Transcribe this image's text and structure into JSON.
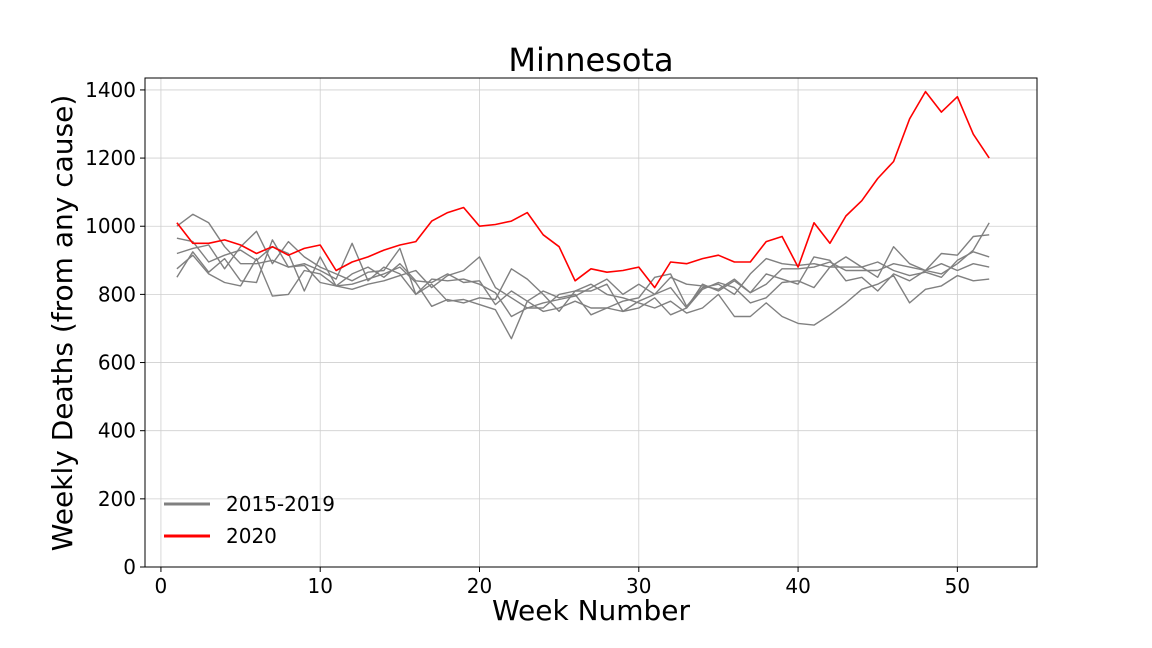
{
  "chart_data": {
    "type": "line",
    "title": "Minnesota",
    "xlabel": "Week Number",
    "ylabel": "Weekly Deaths (from any cause)",
    "xlim": [
      -1,
      55
    ],
    "ylim": [
      0,
      1435
    ],
    "xticks": [
      0,
      10,
      20,
      30,
      40,
      50
    ],
    "yticks": [
      0,
      200,
      400,
      600,
      800,
      1000,
      1200,
      1400
    ],
    "grid": true,
    "legend_position": "lower-left",
    "legend": [
      {
        "label": "2015-2019",
        "color": "#808080"
      },
      {
        "label": "2020",
        "color": "#ff0000"
      }
    ],
    "x": [
      1,
      2,
      3,
      4,
      5,
      6,
      7,
      8,
      9,
      10,
      11,
      12,
      13,
      14,
      15,
      16,
      17,
      18,
      19,
      20,
      21,
      22,
      23,
      24,
      25,
      26,
      27,
      28,
      29,
      30,
      31,
      32,
      33,
      34,
      35,
      36,
      37,
      38,
      39,
      40,
      41,
      42,
      43,
      44,
      45,
      46,
      47,
      48,
      49,
      50,
      51,
      52
    ],
    "series": [
      {
        "group": "2015-2019",
        "color": "#808080",
        "values": [
          850,
          925,
          865,
          905,
          840,
          835,
          960,
          880,
          885,
          835,
          825,
          815,
          830,
          840,
          855,
          870,
          820,
          855,
          870,
          910,
          820,
          790,
          760,
          775,
          785,
          795,
          820,
          845,
          800,
          830,
          800,
          820,
          760,
          815,
          835,
          820,
          775,
          790,
          835,
          840,
          820,
          880,
          910,
          880,
          850,
          940,
          890,
          870,
          860,
          890,
          930,
          1010
        ]
      },
      {
        "group": "2015-2019",
        "color": "#808080",
        "values": [
          1000,
          1035,
          1010,
          940,
          890,
          890,
          900,
          880,
          890,
          870,
          845,
          950,
          840,
          880,
          860,
          800,
          845,
          840,
          845,
          830,
          805,
          735,
          760,
          760,
          800,
          810,
          830,
          800,
          790,
          775,
          760,
          780,
          745,
          760,
          800,
          735,
          735,
          775,
          735,
          715,
          710,
          740,
          775,
          815,
          830,
          855,
          775,
          815,
          825,
          855,
          840,
          845
        ]
      },
      {
        "group": "2015-2019",
        "color": "#808080",
        "values": [
          920,
          935,
          945,
          875,
          940,
          985,
          890,
          955,
          910,
          880,
          860,
          840,
          865,
          870,
          935,
          800,
          830,
          780,
          785,
          770,
          755,
          670,
          780,
          810,
          790,
          800,
          740,
          760,
          750,
          760,
          790,
          740,
          760,
          830,
          810,
          840,
          805,
          830,
          875,
          875,
          880,
          895,
          870,
          870,
          870,
          890,
          880,
          870,
          890,
          870,
          890,
          880
        ]
      },
      {
        "group": "2015-2019",
        "color": "#808080",
        "values": [
          875,
          915,
          860,
          835,
          825,
          905,
          795,
          800,
          870,
          860,
          825,
          830,
          845,
          860,
          880,
          835,
          765,
          785,
          775,
          790,
          785,
          875,
          845,
          800,
          750,
          810,
          810,
          830,
          750,
          780,
          800,
          850,
          830,
          825,
          815,
          845,
          805,
          860,
          845,
          830,
          910,
          900,
          840,
          850,
          810,
          860,
          840,
          870,
          920,
          915,
          970,
          975
        ]
      },
      {
        "group": "2015-2019",
        "color": "#808080",
        "values": [
          965,
          955,
          895,
          915,
          930,
          900,
          940,
          920,
          810,
          910,
          825,
          860,
          880,
          850,
          890,
          840,
          835,
          860,
          835,
          840,
          770,
          810,
          780,
          750,
          760,
          780,
          760,
          760,
          780,
          790,
          850,
          860,
          765,
          820,
          830,
          800,
          860,
          905,
          890,
          885,
          890,
          880,
          880,
          880,
          895,
          870,
          855,
          865,
          850,
          900,
          925,
          910
        ]
      },
      {
        "group": "2020",
        "color": "#ff0000",
        "values": [
          1010,
          950,
          950,
          960,
          945,
          920,
          940,
          915,
          935,
          945,
          870,
          895,
          910,
          930,
          945,
          955,
          1015,
          1040,
          1055,
          1000,
          1005,
          1015,
          1040,
          975,
          940,
          840,
          875,
          865,
          870,
          880,
          820,
          895,
          890,
          905,
          915,
          895,
          895,
          955,
          970,
          880,
          1010,
          950,
          1030,
          1075,
          1140,
          1190,
          1315,
          1395,
          1335,
          1380,
          1270,
          1200
        ]
      }
    ]
  }
}
